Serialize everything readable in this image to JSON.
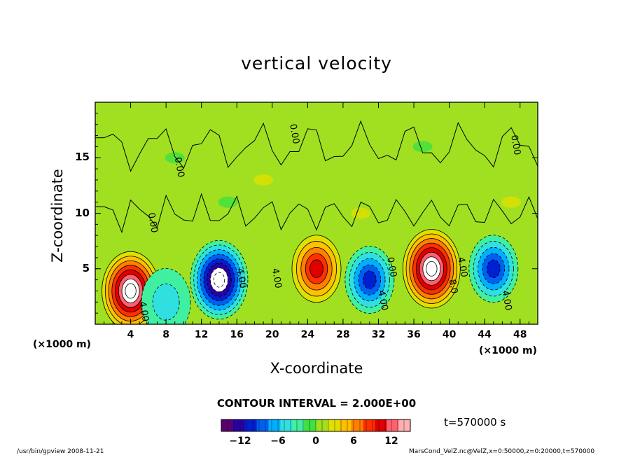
{
  "chart_data": {
    "type": "heatmap",
    "title": "vertical velocity",
    "xlabel": "X-coordinate",
    "ylabel": "Z-coordinate",
    "x_unit": "(×1000 m)",
    "xlim": [
      0,
      50
    ],
    "ylim": [
      0,
      20
    ],
    "x_ticks": [
      "4",
      "8",
      "12",
      "16",
      "20",
      "24",
      "28",
      "32",
      "36",
      "40",
      "44",
      "48"
    ],
    "y_ticks": [
      "5",
      "10",
      "15"
    ],
    "contour_labels": [
      "0.00",
      "4.00",
      "8.0"
    ],
    "contour_interval_text": "CONTOUR INTERVAL = 2.000E+00",
    "colorbar": {
      "ticks": [
        "−12",
        "−6",
        "0",
        "6",
        "12"
      ],
      "min": -15,
      "max": 15,
      "colors": [
        "#5a0070",
        "#2a00a0",
        "#0020d0",
        "#0060f0",
        "#00b0ff",
        "#30e0e0",
        "#40f0a0",
        "#40e040",
        "#a0e020",
        "#e0e000",
        "#ffc000",
        "#ff8000",
        "#ff3000",
        "#e00000",
        "#ff6070",
        "#ffb0b0"
      ]
    },
    "features": [
      {
        "x": 4,
        "z": 3,
        "w": 15,
        "kind": "updraft"
      },
      {
        "x": 8,
        "z": 2,
        "w": -4,
        "kind": "downdraft"
      },
      {
        "x": 14,
        "z": 4,
        "w": -16,
        "kind": "downdraft"
      },
      {
        "x": 25,
        "z": 5,
        "w": 9,
        "kind": "updraft"
      },
      {
        "x": 31,
        "z": 4,
        "w": -10,
        "kind": "downdraft"
      },
      {
        "x": 38,
        "z": 5,
        "w": 16,
        "kind": "updraft"
      },
      {
        "x": 45,
        "z": 5,
        "w": -9,
        "kind": "downdraft"
      }
    ]
  },
  "time_label": "t=570000 s",
  "footer_left": "/usr/bin/gpview   2008-11-21",
  "footer_right": "MarsCond_VelZ.nc@VelZ,x=0:50000,z=0:20000,t=570000"
}
